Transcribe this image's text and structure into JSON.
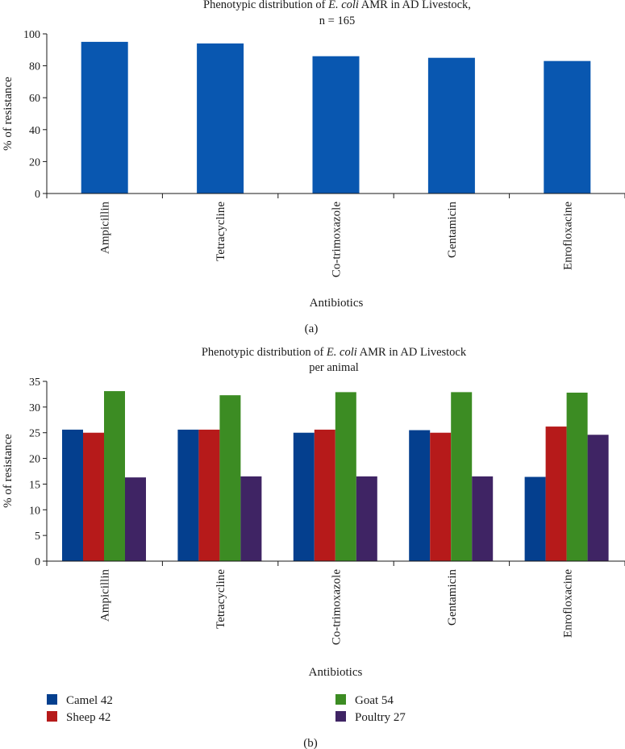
{
  "chart_data": [
    {
      "type": "bar",
      "title_prefix": "Phenotypic distribution of ",
      "title_italic": "E. coli",
      "title_suffix": " AMR in AD Livestock,",
      "subtitle": "n = 165",
      "xlabel": "Antibiotics",
      "ylabel": "% of resistance",
      "panel_label": "(a)",
      "categories": [
        "Ampicillin",
        "Tetracycline",
        "Co-trimoxazole",
        "Gentamicin",
        "Enrofloxacine"
      ],
      "values": [
        95,
        94,
        86,
        85,
        83
      ],
      "ylim": [
        0,
        100
      ],
      "yticks": [
        "0",
        "20",
        "40",
        "60",
        "80",
        "100"
      ],
      "color": "#0957b0",
      "grid": false
    },
    {
      "type": "bar",
      "title_prefix": "Phenotypic distribution of ",
      "title_italic": "E. coli",
      "title_suffix": " AMR in AD Livestock",
      "subtitle": "per animal",
      "xlabel": "Antibiotics",
      "ylabel": "% of resistance",
      "panel_label": "(b)",
      "categories": [
        "Ampicillin",
        "Tetracycline",
        "Co-trimoxazole",
        "Gentamicin",
        "Enrofloxacine"
      ],
      "series": [
        {
          "name": "Camel 42",
          "color": "#043f8e",
          "values": [
            25.6,
            25.6,
            25.0,
            25.5,
            16.4
          ]
        },
        {
          "name": "Sheep 42",
          "color": "#b61a1a",
          "values": [
            25.0,
            25.6,
            25.6,
            25.0,
            26.2
          ]
        },
        {
          "name": "Goat 54",
          "color": "#3c8c23",
          "values": [
            33.1,
            32.3,
            32.9,
            32.9,
            32.8
          ]
        },
        {
          "name": "Poultry 27",
          "color": "#3f2464",
          "values": [
            16.3,
            16.5,
            16.5,
            16.5,
            24.6
          ]
        }
      ],
      "ylim": [
        0,
        35
      ],
      "yticks": [
        "0",
        "5",
        "10",
        "15",
        "20",
        "25",
        "30",
        "35"
      ],
      "legend_position": "bottom",
      "grid": false
    }
  ]
}
